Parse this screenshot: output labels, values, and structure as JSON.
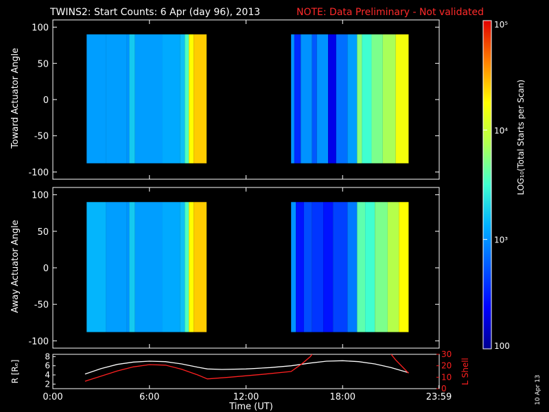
{
  "header": {
    "title": "TWINS2: Start Counts:  6 Apr (day  96), 2013",
    "note": "NOTE: Data Preliminary - Not validated",
    "note_color": "#ff2a2a"
  },
  "side_label": "10 Apr 13",
  "colorbar": {
    "label": "LOG₁₀(Total Starts per Scan)",
    "ticks": [
      {
        "value": 100,
        "label": "100"
      },
      {
        "value": 1000,
        "label": "10³"
      },
      {
        "value": 10000,
        "label": "10⁴"
      },
      {
        "value": 100000,
        "label": "10⁵"
      }
    ],
    "range": [
      100,
      100000
    ],
    "scale": "log"
  },
  "chart_data": [
    {
      "type": "heatmap",
      "name": "toward",
      "title": "",
      "xlabel": "",
      "ylabel": "Toward Actuator Angle",
      "xlim": [
        0,
        24
      ],
      "ylim": [
        -110,
        110
      ],
      "yticks": [
        100,
        50,
        0,
        -50,
        -100
      ],
      "ytick_labels": [
        "100",
        "50",
        "0",
        "-50",
        "-100"
      ],
      "y_data_range": [
        -88,
        90
      ],
      "segments": [
        {
          "start": 2.1,
          "end": 9.55,
          "levels": [
            {
              "t": 2.1,
              "v": 3.05
            },
            {
              "t": 3.3,
              "v": 3.05
            },
            {
              "t": 4.6,
              "v": 3.0
            },
            {
              "t": 4.75,
              "v": 3.25
            },
            {
              "t": 5.1,
              "v": 3.05
            },
            {
              "t": 6.8,
              "v": 3.1
            },
            {
              "t": 7.9,
              "v": 3.2
            },
            {
              "t": 8.2,
              "v": 3.55
            },
            {
              "t": 8.45,
              "v": 4.25
            },
            {
              "t": 8.75,
              "v": 4.4
            },
            {
              "t": 9.55,
              "v": 4.25
            }
          ]
        },
        {
          "start": 14.8,
          "end": 22.1,
          "levels": [
            {
              "t": 14.8,
              "v": 3.0
            },
            {
              "t": 15.0,
              "v": 2.55
            },
            {
              "t": 15.4,
              "v": 3.0
            },
            {
              "t": 16.1,
              "v": 2.75
            },
            {
              "t": 16.4,
              "v": 3.0
            },
            {
              "t": 17.1,
              "v": 2.3
            },
            {
              "t": 17.6,
              "v": 2.85
            },
            {
              "t": 18.3,
              "v": 3.05
            },
            {
              "t": 18.9,
              "v": 3.75
            },
            {
              "t": 19.2,
              "v": 3.5
            },
            {
              "t": 19.8,
              "v": 3.7
            },
            {
              "t": 20.5,
              "v": 3.85
            },
            {
              "t": 21.3,
              "v": 4.2
            },
            {
              "t": 22.1,
              "v": 4.25
            }
          ]
        }
      ]
    },
    {
      "type": "heatmap",
      "name": "away",
      "title": "",
      "xlabel": "",
      "ylabel": "Away Actuator Angle",
      "xlim": [
        0,
        24
      ],
      "ylim": [
        -110,
        110
      ],
      "yticks": [
        100,
        50,
        0,
        -50,
        -100
      ],
      "ytick_labels": [
        "100",
        "50",
        "0",
        "-50",
        "-100"
      ],
      "y_data_range": [
        -88,
        90
      ],
      "segments": [
        {
          "start": 2.1,
          "end": 9.55,
          "levels": [
            {
              "t": 2.1,
              "v": 3.15
            },
            {
              "t": 3.3,
              "v": 3.05
            },
            {
              "t": 4.6,
              "v": 3.0
            },
            {
              "t": 4.75,
              "v": 3.25
            },
            {
              "t": 5.1,
              "v": 3.05
            },
            {
              "t": 6.8,
              "v": 3.1
            },
            {
              "t": 7.9,
              "v": 3.2
            },
            {
              "t": 8.2,
              "v": 3.55
            },
            {
              "t": 8.45,
              "v": 4.25
            },
            {
              "t": 8.75,
              "v": 4.4
            },
            {
              "t": 9.55,
              "v": 4.25
            }
          ]
        },
        {
          "start": 14.8,
          "end": 22.1,
          "levels": [
            {
              "t": 14.8,
              "v": 3.0
            },
            {
              "t": 15.1,
              "v": 2.45
            },
            {
              "t": 15.6,
              "v": 2.7
            },
            {
              "t": 16.1,
              "v": 2.6
            },
            {
              "t": 16.8,
              "v": 2.45
            },
            {
              "t": 17.4,
              "v": 2.65
            },
            {
              "t": 18.3,
              "v": 2.9
            },
            {
              "t": 18.9,
              "v": 3.6
            },
            {
              "t": 19.4,
              "v": 3.5
            },
            {
              "t": 20.0,
              "v": 3.7
            },
            {
              "t": 20.8,
              "v": 3.9
            },
            {
              "t": 21.5,
              "v": 4.25
            },
            {
              "t": 22.1,
              "v": 4.3
            }
          ]
        }
      ]
    },
    {
      "type": "line",
      "name": "orbit",
      "xlabel": "Time (UT)",
      "ylabel": "R [Rₑ]",
      "ylabel_right": "L Shell",
      "xlim": [
        0,
        24
      ],
      "ylim": [
        1,
        8.5
      ],
      "ylim_right": [
        0,
        30
      ],
      "yticks": [
        2,
        4,
        6,
        8
      ],
      "yticks_right": [
        0,
        10,
        20,
        30
      ],
      "xticks": [
        0,
        6,
        12,
        18,
        23.98
      ],
      "xtick_labels": [
        "0:00",
        "6:00",
        "12:00",
        "18:00",
        "23:59"
      ],
      "series": [
        {
          "axis": "left",
          "color": "#ffffff",
          "x": [
            2.0,
            3.0,
            4.0,
            5.0,
            6.0,
            7.0,
            8.0,
            9.0,
            9.6,
            10.5,
            12.0,
            13.5,
            14.8,
            16.0,
            17.0,
            18.0,
            19.0,
            20.0,
            21.0,
            22.1
          ],
          "y": [
            4.2,
            5.4,
            6.3,
            6.8,
            7.0,
            6.9,
            6.4,
            5.7,
            5.3,
            5.2,
            5.3,
            5.6,
            6.0,
            6.6,
            7.0,
            7.1,
            6.9,
            6.4,
            5.6,
            4.5
          ]
        },
        {
          "axis": "right",
          "color": "#ff2020",
          "x": [
            2.0,
            3.0,
            4.0,
            5.0,
            6.0,
            7.0,
            8.0,
            9.0,
            9.6,
            11.0,
            13.0,
            14.8,
            15.5,
            16.0,
            16.2
          ],
          "y": [
            6.5,
            11.0,
            15.5,
            19.0,
            21.0,
            20.5,
            17.0,
            12.0,
            8.5,
            10.0,
            12.5,
            15.0,
            22.0,
            28.0,
            32.0
          ]
        },
        {
          "axis": "right",
          "color": "#ff2020",
          "x": [
            20.9,
            21.3,
            22.1
          ],
          "y": [
            32.0,
            25.0,
            13.5
          ]
        }
      ]
    }
  ]
}
